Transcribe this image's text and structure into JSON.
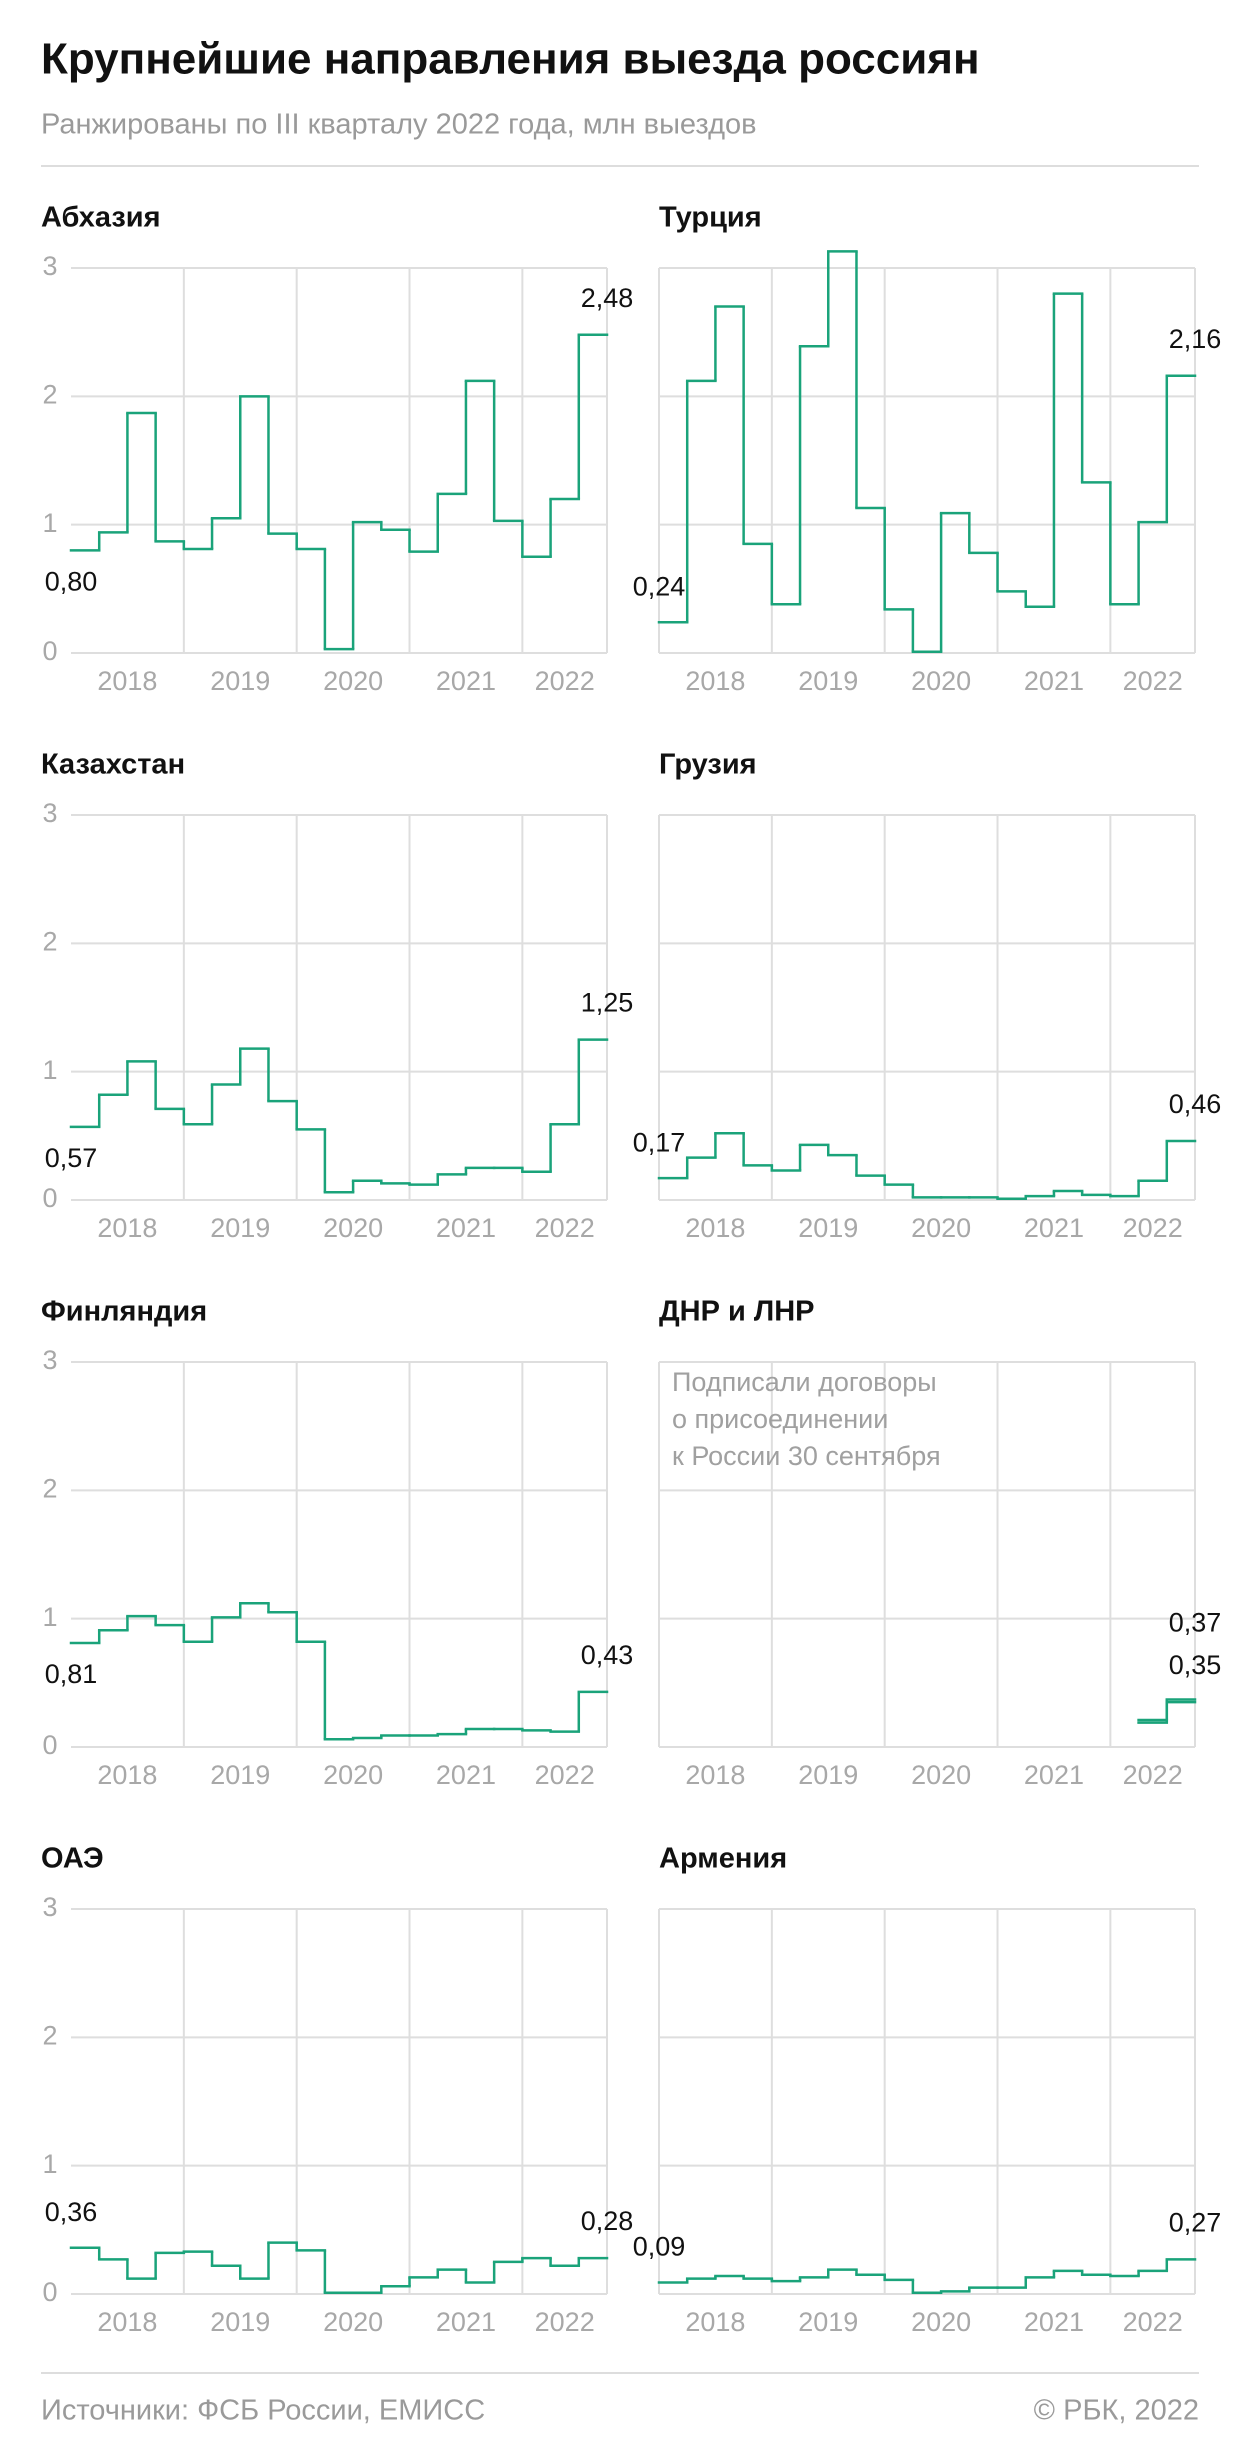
{
  "title": "Крупнейшие направления выезда россиян",
  "subtitle": "Ранжированы по III кварталу 2022 года, млн выездов",
  "source": "Источники: ФСБ России, ЕМИСС",
  "credit": "© РБК, 2022",
  "chart_data": [
    {
      "type": "step",
      "title": "Абхазия",
      "categories": [
        "2018",
        null,
        null,
        null,
        "2019",
        null,
        null,
        null,
        "2020",
        null,
        null,
        null,
        "2021",
        null,
        null,
        null,
        "2022",
        null,
        null
      ],
      "series": [
        {
          "color": "#1aa37a",
          "values": [
            0.8,
            0.94,
            1.87,
            0.87,
            0.81,
            1.05,
            2.0,
            0.93,
            0.81,
            0.03,
            1.02,
            0.96,
            0.79,
            1.24,
            2.12,
            1.03,
            0.75,
            1.2,
            2.48
          ],
          "value_labels": [
            "0,80",
            null,
            null,
            null,
            null,
            null,
            null,
            null,
            null,
            null,
            null,
            null,
            null,
            null,
            null,
            null,
            null,
            null,
            "2,48"
          ]
        }
      ],
      "ylim": [
        0,
        3
      ],
      "yticks": [
        0,
        1,
        2,
        3
      ],
      "grid": true
    },
    {
      "type": "step",
      "title": "Турция",
      "categories": [
        "2018",
        null,
        null,
        null,
        "2019",
        null,
        null,
        null,
        "2020",
        null,
        null,
        null,
        "2021",
        null,
        null,
        null,
        "2022",
        null,
        null
      ],
      "series": [
        {
          "color": "#1aa37a",
          "values": [
            0.24,
            2.12,
            2.7,
            0.85,
            0.38,
            2.39,
            3.13,
            1.13,
            0.34,
            0.01,
            1.09,
            0.78,
            0.48,
            0.36,
            2.8,
            1.33,
            0.38,
            1.02,
            2.16
          ],
          "value_labels": [
            "0,24",
            null,
            null,
            null,
            null,
            null,
            null,
            null,
            null,
            null,
            null,
            null,
            null,
            null,
            null,
            null,
            null,
            null,
            "2,16"
          ]
        }
      ],
      "ylim": [
        0,
        3
      ],
      "yticks": [
        0,
        1,
        2,
        3
      ],
      "grid": true
    },
    {
      "type": "step",
      "title": "Казахстан",
      "categories": [
        "2018",
        null,
        null,
        null,
        "2019",
        null,
        null,
        null,
        "2020",
        null,
        null,
        null,
        "2021",
        null,
        null,
        null,
        "2022",
        null,
        null
      ],
      "series": [
        {
          "color": "#1aa37a",
          "values": [
            0.57,
            0.82,
            1.08,
            0.71,
            0.59,
            0.9,
            1.18,
            0.77,
            0.55,
            0.06,
            0.15,
            0.13,
            0.12,
            0.2,
            0.25,
            0.25,
            0.22,
            0.59,
            1.25
          ],
          "value_labels": [
            "0,57",
            null,
            null,
            null,
            null,
            null,
            null,
            null,
            null,
            null,
            null,
            null,
            null,
            null,
            null,
            null,
            null,
            null,
            "1,25"
          ]
        }
      ],
      "ylim": [
        0,
        3
      ],
      "yticks": [
        0,
        1,
        2,
        3
      ],
      "grid": true
    },
    {
      "type": "step",
      "title": "Грузия",
      "categories": [
        "2018",
        null,
        null,
        null,
        "2019",
        null,
        null,
        null,
        "2020",
        null,
        null,
        null,
        "2021",
        null,
        null,
        null,
        "2022",
        null,
        null
      ],
      "series": [
        {
          "color": "#1aa37a",
          "values": [
            0.17,
            0.33,
            0.52,
            0.27,
            0.23,
            0.43,
            0.35,
            0.19,
            0.12,
            0.02,
            0.02,
            0.02,
            0.01,
            0.03,
            0.07,
            0.04,
            0.03,
            0.15,
            0.46
          ],
          "value_labels": [
            "0,17",
            null,
            null,
            null,
            null,
            null,
            null,
            null,
            null,
            null,
            null,
            null,
            null,
            null,
            null,
            null,
            null,
            null,
            "0,46"
          ]
        }
      ],
      "ylim": [
        0,
        3
      ],
      "yticks": [
        0,
        1,
        2,
        3
      ],
      "grid": true
    },
    {
      "type": "step",
      "title": "Финляндия",
      "categories": [
        "2018",
        null,
        null,
        null,
        "2019",
        null,
        null,
        null,
        "2020",
        null,
        null,
        null,
        "2021",
        null,
        null,
        null,
        "2022",
        null,
        null
      ],
      "series": [
        {
          "color": "#1aa37a",
          "values": [
            0.81,
            0.91,
            1.02,
            0.95,
            0.82,
            1.01,
            1.12,
            1.05,
            0.82,
            0.06,
            0.07,
            0.09,
            0.09,
            0.1,
            0.14,
            0.14,
            0.13,
            0.12,
            0.43
          ],
          "value_labels": [
            "0,81",
            null,
            null,
            null,
            null,
            null,
            null,
            null,
            null,
            null,
            null,
            null,
            null,
            null,
            null,
            null,
            null,
            null,
            "0,43"
          ]
        }
      ],
      "ylim": [
        0,
        3
      ],
      "yticks": [
        0,
        1,
        2,
        3
      ],
      "grid": true
    },
    {
      "type": "step",
      "title": "ДНР и ЛНР",
      "annotation": [
        "Подписали договоры",
        "о присоединении",
        "к России 30 сентября"
      ],
      "categories": [
        "2018",
        null,
        null,
        null,
        "2019",
        null,
        null,
        null,
        "2020",
        null,
        null,
        null,
        "2021",
        null,
        null,
        null,
        "2022",
        null,
        null
      ],
      "series": [
        {
          "color": "#1aa37a",
          "values": [
            null,
            null,
            null,
            null,
            null,
            null,
            null,
            null,
            null,
            null,
            null,
            null,
            null,
            null,
            null,
            null,
            null,
            0.21,
            0.37
          ],
          "value_labels": [
            null,
            null,
            null,
            null,
            null,
            null,
            null,
            null,
            null,
            null,
            null,
            null,
            null,
            null,
            null,
            null,
            null,
            null,
            "0,37"
          ]
        },
        {
          "color": "#1aa37a",
          "values": [
            null,
            null,
            null,
            null,
            null,
            null,
            null,
            null,
            null,
            null,
            null,
            null,
            null,
            null,
            null,
            null,
            null,
            0.19,
            0.35
          ],
          "value_labels": [
            null,
            null,
            null,
            null,
            null,
            null,
            null,
            null,
            null,
            null,
            null,
            null,
            null,
            null,
            null,
            null,
            null,
            null,
            "0,35"
          ]
        }
      ],
      "ylim": [
        0,
        3
      ],
      "yticks": [
        0,
        1,
        2,
        3
      ],
      "grid": true
    },
    {
      "type": "step",
      "title": "ОАЭ",
      "categories": [
        "2018",
        null,
        null,
        null,
        "2019",
        null,
        null,
        null,
        "2020",
        null,
        null,
        null,
        "2021",
        null,
        null,
        null,
        "2022",
        null,
        null
      ],
      "series": [
        {
          "color": "#1aa37a",
          "values": [
            0.36,
            0.27,
            0.12,
            0.32,
            0.33,
            0.22,
            0.12,
            0.4,
            0.34,
            0.01,
            0.01,
            0.06,
            0.13,
            0.19,
            0.09,
            0.25,
            0.28,
            0.22,
            0.28
          ],
          "value_labels": [
            "0,36",
            null,
            null,
            null,
            null,
            null,
            null,
            null,
            null,
            null,
            null,
            null,
            null,
            null,
            null,
            null,
            null,
            null,
            "0,28"
          ]
        }
      ],
      "ylim": [
        0,
        3
      ],
      "yticks": [
        0,
        1,
        2,
        3
      ],
      "grid": true
    },
    {
      "type": "step",
      "title": "Армения",
      "categories": [
        "2018",
        null,
        null,
        null,
        "2019",
        null,
        null,
        null,
        "2020",
        null,
        null,
        null,
        "2021",
        null,
        null,
        null,
        "2022",
        null,
        null
      ],
      "series": [
        {
          "color": "#1aa37a",
          "values": [
            0.09,
            0.12,
            0.14,
            0.12,
            0.1,
            0.13,
            0.19,
            0.15,
            0.11,
            0.01,
            0.02,
            0.05,
            0.05,
            0.13,
            0.18,
            0.15,
            0.14,
            0.18,
            0.27
          ],
          "value_labels": [
            "0,09",
            null,
            null,
            null,
            null,
            null,
            null,
            null,
            null,
            null,
            null,
            null,
            null,
            null,
            null,
            null,
            null,
            null,
            "0,27"
          ]
        }
      ],
      "ylim": [
        0,
        3
      ],
      "yticks": [
        0,
        1,
        2,
        3
      ],
      "grid": true
    }
  ]
}
